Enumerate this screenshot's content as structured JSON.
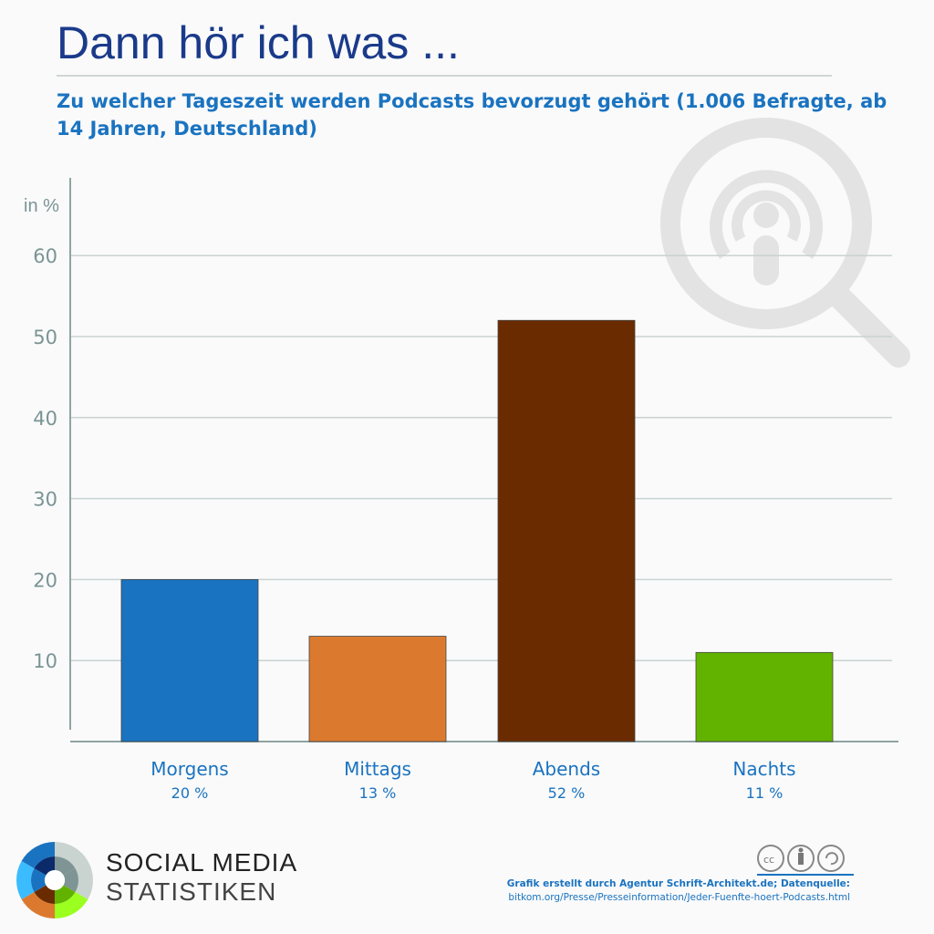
{
  "header": {
    "title": "Dann hör ich was ...",
    "subtitle": "Zu welcher Tageszeit werden Podcasts bevorzugt gehört (1.006 Befragte, ab 14 Jahren, Deutschland)"
  },
  "chart_data": {
    "type": "bar",
    "ylabel": "in %",
    "ylim": [
      0,
      65
    ],
    "yticks": [
      10,
      20,
      30,
      40,
      50,
      60
    ],
    "grid": true,
    "categories": [
      "Morgens",
      "Mittags",
      "Abends",
      "Nachts"
    ],
    "values": [
      20,
      13,
      52,
      11
    ],
    "value_labels": [
      "20 %",
      "13 %",
      "52 %",
      "11 %"
    ],
    "colors": [
      "#1a73c0",
      "#db7a2e",
      "#6b2b00",
      "#62b300"
    ]
  },
  "footer": {
    "brand_line1": "SOCIAL MEDIA",
    "brand_line2": "STATISTIKEN",
    "credit": "Grafik erstellt durch Agentur Schrift-Architekt.de; Datenquelle:",
    "source": "bitkom.org/Presse/Presseinformation/Jeder-Fuenfte-hoert-Podcasts.html",
    "license_icons": [
      "cc-icon",
      "by-icon",
      "sa-icon"
    ]
  },
  "decor": {
    "icon": "podcast-search-icon"
  }
}
